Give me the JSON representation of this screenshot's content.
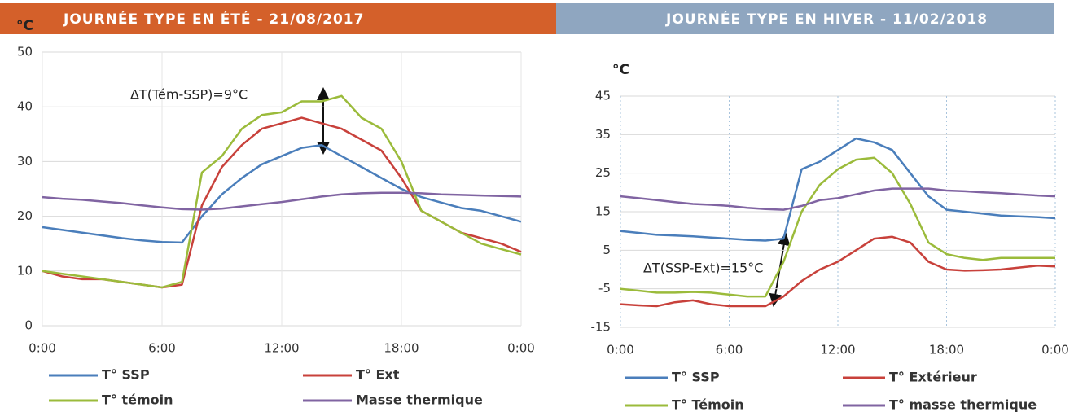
{
  "chart_data": [
    {
      "type": "line",
      "title": "JOURNÉE TYPE EN ÉTÉ - 21/08/2017",
      "y_label": "°C",
      "annotation": "ΔT(Tém-SSP)=9°C",
      "x": [
        0,
        1,
        2,
        3,
        4,
        5,
        6,
        7,
        8,
        9,
        10,
        11,
        12,
        13,
        14,
        15,
        16,
        17,
        18,
        19,
        20,
        21,
        22,
        23,
        24
      ],
      "xlim": [
        0,
        24
      ],
      "xticks": [
        {
          "value": 0,
          "label": "0:00"
        },
        {
          "value": 6,
          "label": "6:00"
        },
        {
          "value": 12,
          "label": "12:00"
        },
        {
          "value": 18,
          "label": "18:00"
        },
        {
          "value": 24,
          "label": "0:00"
        }
      ],
      "ylim": [
        0,
        50
      ],
      "yticks": [
        0,
        10,
        20,
        30,
        40,
        50
      ],
      "grid": true,
      "series": [
        {
          "name": "T° SSP",
          "color": "#4a7ebb",
          "values": [
            18,
            17.5,
            17,
            16.5,
            16,
            15.6,
            15.3,
            15.2,
            20,
            24,
            27,
            29.5,
            31,
            32.5,
            33,
            31,
            29,
            27,
            25,
            23.5,
            22.5,
            21.5,
            21,
            20,
            19
          ]
        },
        {
          "name": "T° Ext",
          "color": "#c8413b",
          "values": [
            10,
            9,
            8.5,
            8.5,
            8,
            7.5,
            7,
            7.5,
            22,
            29,
            33,
            36,
            37,
            38,
            37,
            36,
            34,
            32,
            27,
            21,
            19,
            17,
            16,
            15,
            13.5
          ]
        },
        {
          "name": "T° témoin",
          "color": "#9bbb3b",
          "values": [
            10,
            9.5,
            9,
            8.5,
            8,
            7.5,
            7,
            8,
            28,
            31,
            36,
            38.5,
            39,
            41,
            41,
            42,
            38,
            36,
            30,
            21,
            19,
            17,
            15,
            14,
            13
          ]
        },
        {
          "name": "Masse thermique",
          "color": "#8064a2",
          "values": [
            23.5,
            23.2,
            23,
            22.7,
            22.4,
            22,
            21.6,
            21.3,
            21.2,
            21.4,
            21.8,
            22.2,
            22.6,
            23.1,
            23.6,
            24,
            24.2,
            24.3,
            24.3,
            24.2,
            24,
            23.9,
            23.8,
            23.7,
            23.6
          ]
        }
      ]
    },
    {
      "type": "line",
      "title": "JOURNÉE TYPE EN HIVER - 11/02/2018",
      "y_label": "°C",
      "annotation": "ΔT(SSP-Ext)=15°C",
      "x": [
        0,
        1,
        2,
        3,
        4,
        5,
        6,
        7,
        8,
        9,
        10,
        11,
        12,
        13,
        14,
        15,
        16,
        17,
        18,
        19,
        20,
        21,
        22,
        23,
        24
      ],
      "xlim": [
        0,
        24
      ],
      "xticks": [
        {
          "value": 0,
          "label": "0:00"
        },
        {
          "value": 6,
          "label": "6:00"
        },
        {
          "value": 12,
          "label": "12:00"
        },
        {
          "value": 18,
          "label": "18:00"
        },
        {
          "value": 24,
          "label": "0:00"
        }
      ],
      "ylim": [
        -15,
        45
      ],
      "yticks": [
        -15,
        -5,
        5,
        15,
        25,
        35,
        45
      ],
      "grid": true,
      "series": [
        {
          "name": "T° SSP",
          "color": "#4a7ebb",
          "values": [
            10,
            9.5,
            9,
            8.8,
            8.6,
            8.3,
            8,
            7.7,
            7.5,
            8,
            26,
            28,
            31,
            34,
            33,
            31,
            25,
            19,
            15.5,
            15,
            14.5,
            14,
            13.8,
            13.6,
            13.3
          ]
        },
        {
          "name": "T° Extérieur",
          "color": "#c8413b",
          "values": [
            -9,
            -9.3,
            -9.5,
            -8.5,
            -8,
            -9,
            -9.5,
            -9.5,
            -9.5,
            -7,
            -3,
            0,
            2,
            5,
            8,
            8.5,
            7,
            2,
            0,
            -0.3,
            -0.2,
            0,
            0.5,
            1,
            0.8
          ]
        },
        {
          "name": "T° Témoin",
          "color": "#9bbb3b",
          "values": [
            -5,
            -5.5,
            -6,
            -6,
            -5.8,
            -6,
            -6.5,
            -7,
            -7,
            2,
            15,
            22,
            26,
            28.5,
            29,
            25,
            17,
            7,
            4,
            3,
            2.5,
            3,
            3,
            3,
            3
          ]
        },
        {
          "name": "T° masse thermique",
          "color": "#8064a2",
          "values": [
            19,
            18.5,
            18,
            17.5,
            17,
            16.8,
            16.5,
            16,
            15.7,
            15.5,
            16.5,
            18,
            18.5,
            19.5,
            20.5,
            21,
            21,
            21,
            20.5,
            20.3,
            20,
            19.8,
            19.5,
            19.2,
            19
          ]
        }
      ]
    }
  ]
}
